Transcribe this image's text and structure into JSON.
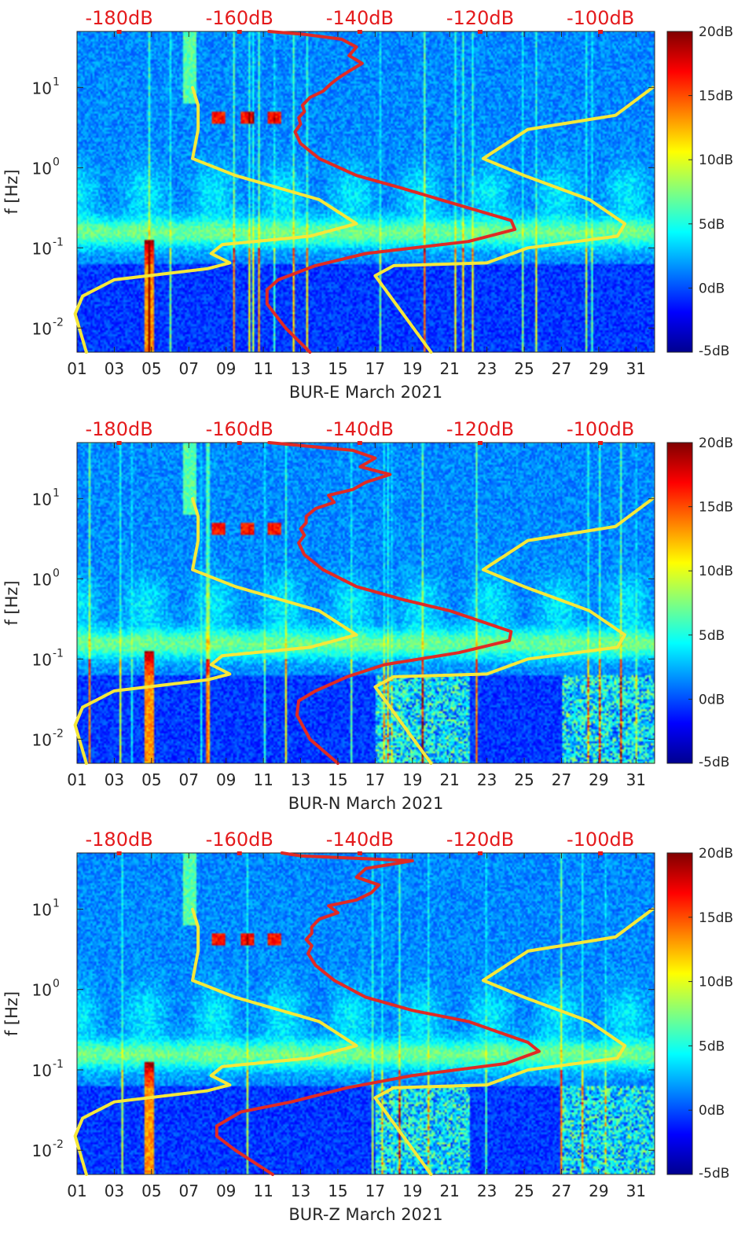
{
  "chart_data": [
    {
      "type": "heatmap",
      "title": "",
      "xlabel": "BUR-E March 2021",
      "ylabel": "f [Hz]",
      "x_ticks": [
        "01",
        "03",
        "05",
        "07",
        "09",
        "11",
        "13",
        "15",
        "17",
        "19",
        "21",
        "23",
        "25",
        "27",
        "29",
        "31"
      ],
      "x_range_days": [
        1,
        32
      ],
      "y_ticks": [
        {
          "label_base": "10",
          "label_exp": "1",
          "value": 10
        },
        {
          "label_base": "10",
          "label_exp": "0",
          "value": 1
        },
        {
          "label_base": "10",
          "label_exp": "-1",
          "value": 0.1
        },
        {
          "label_base": "10",
          "label_exp": "-2",
          "value": 0.01
        }
      ],
      "y_range_hz": [
        0.005,
        50
      ],
      "top_axis_labels": [
        "-180dB",
        "-160dB",
        "-140dB",
        "-120dB",
        "-100dB"
      ],
      "top_axis_range_db": [
        -187,
        -91
      ],
      "colorbar": {
        "labels": [
          "20dB",
          "15dB",
          "10dB",
          "5dB",
          "0dB",
          "-5dB"
        ],
        "range_db": [
          -5,
          20
        ],
        "colormap": "jet"
      },
      "series": [
        {
          "name": "low-noise-model",
          "color": "#f5e83a",
          "points": [
            [
              1.5,
              0.005
            ],
            [
              0.9,
              0.015
            ],
            [
              1.3,
              0.025
            ],
            [
              3.0,
              0.04
            ],
            [
              8.0,
              0.055
            ],
            [
              9.2,
              0.065
            ],
            [
              8.2,
              0.085
            ],
            [
              8.8,
              0.11
            ],
            [
              13.5,
              0.14
            ],
            [
              16.0,
              0.2
            ],
            [
              14.0,
              0.4
            ],
            [
              9.5,
              0.8
            ],
            [
              7.2,
              1.3
            ],
            [
              7.5,
              3.0
            ],
            [
              7.5,
              6.0
            ],
            [
              7.2,
              10.0
            ]
          ]
        },
        {
          "name": "high-noise-model",
          "color": "#f5e83a",
          "points": [
            [
              20.0,
              0.005
            ],
            [
              17.0,
              0.045
            ],
            [
              18.0,
              0.06
            ],
            [
              23.0,
              0.065
            ],
            [
              25.2,
              0.1
            ],
            [
              30.0,
              0.14
            ],
            [
              30.4,
              0.2
            ],
            [
              28.5,
              0.4
            ],
            [
              25.0,
              0.8
            ],
            [
              22.8,
              1.3
            ],
            [
              25.2,
              3.0
            ],
            [
              29.9,
              4.5
            ],
            [
              31.9,
              10.0
            ]
          ]
        },
        {
          "name": "measured-psd",
          "color": "#e02a24",
          "points": [
            [
              13.5,
              0.005
            ],
            [
              12.2,
              0.01
            ],
            [
              11.2,
              0.02
            ],
            [
              11.2,
              0.03
            ],
            [
              11.8,
              0.04
            ],
            [
              13.8,
              0.06
            ],
            [
              16.5,
              0.085
            ],
            [
              22.0,
              0.12
            ],
            [
              24.5,
              0.17
            ],
            [
              24.3,
              0.22
            ],
            [
              20.5,
              0.4
            ],
            [
              18.5,
              0.55
            ],
            [
              16.0,
              0.8
            ],
            [
              14.0,
              1.3
            ],
            [
              13.0,
              2.0
            ],
            [
              12.7,
              2.8
            ],
            [
              13.0,
              3.5
            ],
            [
              12.9,
              4.2
            ],
            [
              13.2,
              5.0
            ],
            [
              13.1,
              6.0
            ],
            [
              13.5,
              7.5
            ],
            [
              14.2,
              9.0
            ],
            [
              14.6,
              11.0
            ],
            [
              15.0,
              13.0
            ],
            [
              15.6,
              16.0
            ],
            [
              16.3,
              20.0
            ],
            [
              15.6,
              25.0
            ],
            [
              16.0,
              32.0
            ],
            [
              15.2,
              40.0
            ],
            [
              13.2,
              46.0
            ],
            [
              11.3,
              50.0
            ]
          ]
        }
      ]
    },
    {
      "type": "heatmap",
      "title": "",
      "xlabel": "BUR-N March 2021",
      "ylabel": "f [Hz]",
      "x_ticks": [
        "01",
        "03",
        "05",
        "07",
        "09",
        "11",
        "13",
        "15",
        "17",
        "19",
        "21",
        "23",
        "25",
        "27",
        "29",
        "31"
      ],
      "x_range_days": [
        1,
        32
      ],
      "y_ticks": [
        {
          "label_base": "10",
          "label_exp": "1",
          "value": 10
        },
        {
          "label_base": "10",
          "label_exp": "0",
          "value": 1
        },
        {
          "label_base": "10",
          "label_exp": "-1",
          "value": 0.1
        },
        {
          "label_base": "10",
          "label_exp": "-2",
          "value": 0.01
        }
      ],
      "y_range_hz": [
        0.005,
        50
      ],
      "top_axis_labels": [
        "-180dB",
        "-160dB",
        "-140dB",
        "-120dB",
        "-100dB"
      ],
      "top_axis_range_db": [
        -187,
        -91
      ],
      "colorbar": {
        "labels": [
          "20dB",
          "15dB",
          "10dB",
          "5dB",
          "0dB",
          "-5dB"
        ],
        "range_db": [
          -5,
          20
        ],
        "colormap": "jet"
      },
      "series": [
        {
          "name": "low-noise-model",
          "color": "#f5e83a",
          "points": [
            [
              1.5,
              0.005
            ],
            [
              0.9,
              0.015
            ],
            [
              1.3,
              0.025
            ],
            [
              3.0,
              0.04
            ],
            [
              8.0,
              0.055
            ],
            [
              9.2,
              0.065
            ],
            [
              8.2,
              0.085
            ],
            [
              8.8,
              0.11
            ],
            [
              13.5,
              0.14
            ],
            [
              16.0,
              0.2
            ],
            [
              14.0,
              0.4
            ],
            [
              9.5,
              0.8
            ],
            [
              7.2,
              1.3
            ],
            [
              7.5,
              3.0
            ],
            [
              7.5,
              6.0
            ],
            [
              7.2,
              10.0
            ]
          ]
        },
        {
          "name": "high-noise-model",
          "color": "#f5e83a",
          "points": [
            [
              20.0,
              0.005
            ],
            [
              17.0,
              0.045
            ],
            [
              18.0,
              0.06
            ],
            [
              23.0,
              0.065
            ],
            [
              25.2,
              0.1
            ],
            [
              30.0,
              0.14
            ],
            [
              30.4,
              0.2
            ],
            [
              28.5,
              0.4
            ],
            [
              25.0,
              0.8
            ],
            [
              22.8,
              1.3
            ],
            [
              25.2,
              3.0
            ],
            [
              29.9,
              4.5
            ],
            [
              31.9,
              10.0
            ]
          ]
        },
        {
          "name": "measured-psd",
          "color": "#e02a24",
          "points": [
            [
              15.0,
              0.005
            ],
            [
              13.5,
              0.01
            ],
            [
              12.8,
              0.02
            ],
            [
              12.9,
              0.03
            ],
            [
              13.8,
              0.04
            ],
            [
              15.5,
              0.06
            ],
            [
              17.5,
              0.085
            ],
            [
              21.5,
              0.12
            ],
            [
              24.2,
              0.17
            ],
            [
              24.3,
              0.22
            ],
            [
              21.0,
              0.4
            ],
            [
              18.5,
              0.55
            ],
            [
              16.0,
              0.8
            ],
            [
              14.2,
              1.3
            ],
            [
              13.2,
              2.0
            ],
            [
              12.9,
              2.8
            ],
            [
              13.2,
              3.5
            ],
            [
              13.0,
              4.2
            ],
            [
              13.3,
              5.0
            ],
            [
              13.3,
              6.0
            ],
            [
              13.8,
              7.5
            ],
            [
              14.8,
              9.0
            ],
            [
              14.5,
              11.0
            ],
            [
              15.8,
              13.0
            ],
            [
              16.5,
              16.0
            ],
            [
              17.8,
              20.0
            ],
            [
              16.2,
              25.0
            ],
            [
              17.0,
              32.0
            ],
            [
              15.8,
              40.0
            ],
            [
              13.0,
              46.0
            ],
            [
              11.3,
              50.0
            ]
          ]
        }
      ]
    },
    {
      "type": "heatmap",
      "title": "",
      "xlabel": "BUR-Z March 2021",
      "ylabel": "f [Hz]",
      "x_ticks": [
        "01",
        "03",
        "05",
        "07",
        "09",
        "11",
        "13",
        "15",
        "17",
        "19",
        "21",
        "23",
        "25",
        "27",
        "29",
        "31"
      ],
      "x_range_days": [
        1,
        32
      ],
      "y_ticks": [
        {
          "label_base": "10",
          "label_exp": "1",
          "value": 10
        },
        {
          "label_base": "10",
          "label_exp": "0",
          "value": 1
        },
        {
          "label_base": "10",
          "label_exp": "-1",
          "value": 0.1
        },
        {
          "label_base": "10",
          "label_exp": "-2",
          "value": 0.01
        }
      ],
      "y_range_hz": [
        0.005,
        50
      ],
      "top_axis_labels": [
        "-180dB",
        "-160dB",
        "-140dB",
        "-120dB",
        "-100dB"
      ],
      "top_axis_range_db": [
        -187,
        -91
      ],
      "colorbar": {
        "labels": [
          "20dB",
          "15dB",
          "10dB",
          "5dB",
          "0dB",
          "-5dB"
        ],
        "range_db": [
          -5,
          20
        ],
        "colormap": "jet"
      },
      "series": [
        {
          "name": "low-noise-model",
          "color": "#f5e83a",
          "points": [
            [
              1.5,
              0.005
            ],
            [
              0.9,
              0.015
            ],
            [
              1.3,
              0.025
            ],
            [
              3.0,
              0.04
            ],
            [
              8.0,
              0.055
            ],
            [
              9.2,
              0.065
            ],
            [
              8.2,
              0.085
            ],
            [
              8.8,
              0.11
            ],
            [
              13.5,
              0.14
            ],
            [
              16.0,
              0.2
            ],
            [
              14.0,
              0.4
            ],
            [
              9.5,
              0.8
            ],
            [
              7.2,
              1.3
            ],
            [
              7.5,
              3.0
            ],
            [
              7.5,
              6.0
            ],
            [
              7.2,
              10.0
            ]
          ]
        },
        {
          "name": "high-noise-model",
          "color": "#f5e83a",
          "points": [
            [
              20.0,
              0.005
            ],
            [
              17.0,
              0.045
            ],
            [
              18.0,
              0.06
            ],
            [
              23.0,
              0.065
            ],
            [
              25.2,
              0.1
            ],
            [
              30.0,
              0.14
            ],
            [
              30.4,
              0.2
            ],
            [
              28.5,
              0.4
            ],
            [
              25.0,
              0.8
            ],
            [
              22.8,
              1.3
            ],
            [
              25.2,
              3.0
            ],
            [
              29.9,
              4.5
            ],
            [
              31.9,
              10.0
            ]
          ]
        },
        {
          "name": "measured-psd",
          "color": "#e02a24",
          "points": [
            [
              11.5,
              0.005
            ],
            [
              9.5,
              0.01
            ],
            [
              8.5,
              0.015
            ],
            [
              8.5,
              0.02
            ],
            [
              9.8,
              0.03
            ],
            [
              12.5,
              0.04
            ],
            [
              15.5,
              0.06
            ],
            [
              19.0,
              0.085
            ],
            [
              24.0,
              0.12
            ],
            [
              25.8,
              0.17
            ],
            [
              25.2,
              0.22
            ],
            [
              22.0,
              0.4
            ],
            [
              19.0,
              0.55
            ],
            [
              16.5,
              0.8
            ],
            [
              14.8,
              1.3
            ],
            [
              13.8,
              2.0
            ],
            [
              13.4,
              2.8
            ],
            [
              13.6,
              3.5
            ],
            [
              13.3,
              4.2
            ],
            [
              13.6,
              5.0
            ],
            [
              13.6,
              6.0
            ],
            [
              14.0,
              7.5
            ],
            [
              15.0,
              9.0
            ],
            [
              14.5,
              11.0
            ],
            [
              16.0,
              13.0
            ],
            [
              16.8,
              16.0
            ],
            [
              17.2,
              20.0
            ],
            [
              16.0,
              25.0
            ],
            [
              16.5,
              32.0
            ],
            [
              19.0,
              40.0
            ],
            [
              13.0,
              46.0
            ],
            [
              12.0,
              50.0
            ]
          ]
        }
      ]
    }
  ]
}
